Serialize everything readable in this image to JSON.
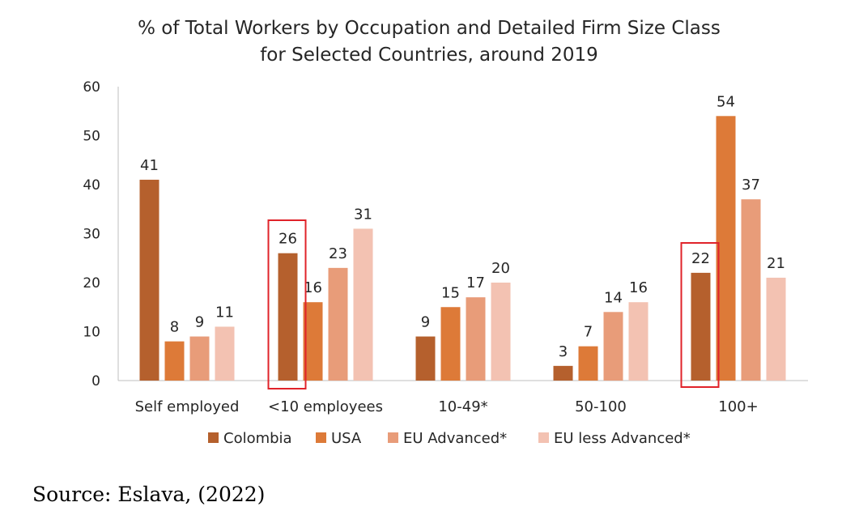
{
  "chart_data": {
    "type": "bar",
    "title": [
      "% of Total Workers by Occupation and Detailed Firm Size Class",
      "for Selected Countries, around 2019"
    ],
    "xlabel": "",
    "ylabel": "",
    "categories": [
      "Self employed",
      "<10 employees",
      "10-49*",
      "50-100",
      "100+"
    ],
    "ylim": [
      0,
      60
    ],
    "yticks": [
      0,
      10,
      20,
      30,
      40,
      50,
      60
    ],
    "grid": false,
    "legend_position": "bottom",
    "series": [
      {
        "name": "Colombia",
        "color": "#B5602D",
        "values": [
          41,
          26,
          9,
          3,
          22
        ],
        "labels": [
          "41",
          "26",
          "9",
          "3",
          "22"
        ]
      },
      {
        "name": "USA",
        "color": "#DD7A38",
        "values": [
          8,
          16,
          15,
          7,
          54
        ],
        "labels": [
          "8",
          "16",
          "15",
          "7",
          "54"
        ]
      },
      {
        "name": "EU Advanced*",
        "color": "#E89C79",
        "values": [
          9,
          23,
          17,
          14,
          37
        ],
        "labels": [
          "9",
          "23",
          "17",
          "14",
          "37"
        ]
      },
      {
        "name": "EU less Advanced*",
        "color": "#F3C2B2",
        "values": [
          11,
          31,
          20,
          16,
          21
        ],
        "labels": [
          "11",
          "31",
          "20",
          "16",
          "21"
        ]
      }
    ],
    "highlights": [
      {
        "category_index": 1,
        "series_index": 0,
        "color": "#E0232A"
      },
      {
        "category_index": 4,
        "series_index": 0,
        "color": "#E0232A"
      }
    ]
  },
  "source": "Source:  Eslava,  (2022)"
}
